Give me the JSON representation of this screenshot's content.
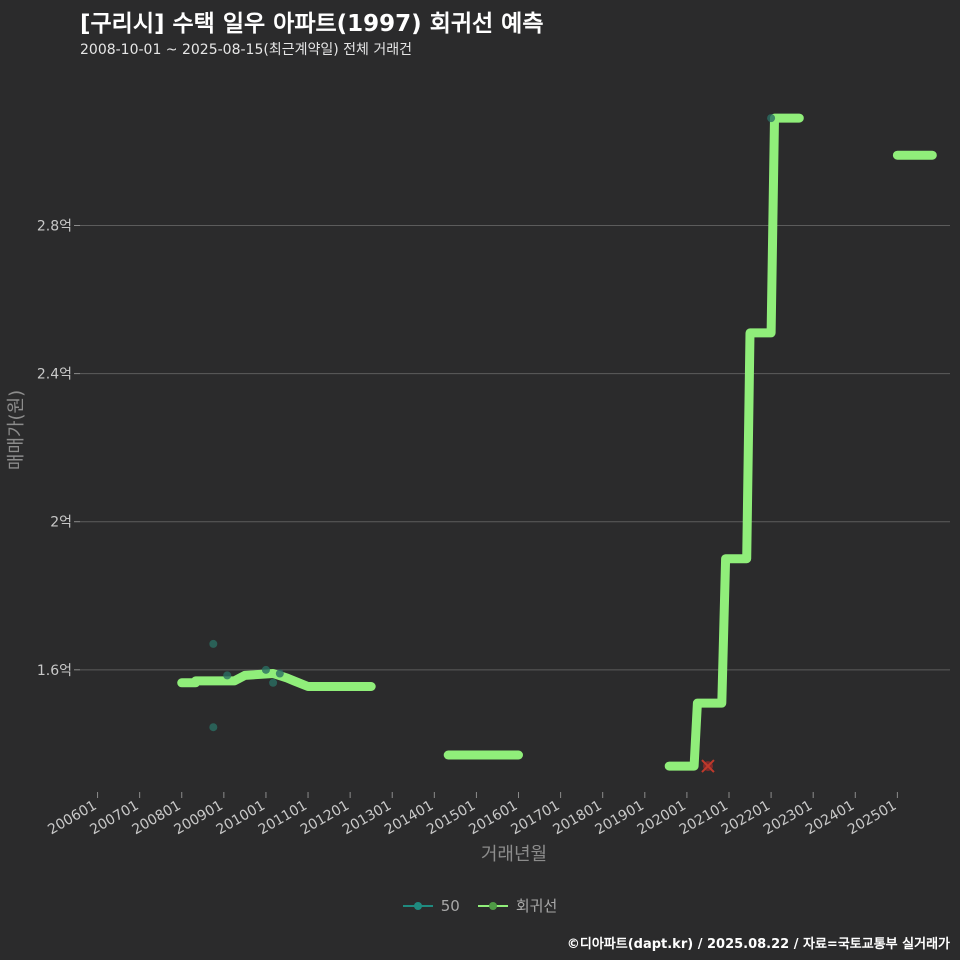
{
  "header": {
    "title": "[구리시] 수택 일우 아파트(1997) 회귀선 예측",
    "subtitle": "2008-10-01 ~ 2025-08-15(최근계약일) 전체 거래건"
  },
  "footer": {
    "credit": "©디아파트(dapt.kr) / 2025.08.22 / 자료=국토교통부 실거래가"
  },
  "legend": {
    "items": [
      {
        "label": "50",
        "color": "#1f8a7f"
      },
      {
        "label": "회귀선",
        "color": "#90ee7a"
      }
    ]
  },
  "colors": {
    "background": "#2b2b2c",
    "grid": "#5c5c5c",
    "regression": "#90ee7a",
    "scatter": "#2a6e63",
    "marker": "#8b2a2a"
  },
  "chart_data": {
    "type": "line",
    "xlabel": "거래년월",
    "ylabel": "매매가(원)",
    "x_range": [
      2005.583,
      2026.25
    ],
    "y_range": [
      1.27,
      3.22
    ],
    "x_ticks": [
      "200601",
      "200701",
      "200801",
      "200901",
      "201001",
      "201101",
      "201201",
      "201301",
      "201401",
      "201501",
      "201601",
      "201701",
      "201801",
      "201901",
      "202001",
      "202101",
      "202201",
      "202301",
      "202401",
      "202501"
    ],
    "y_ticks": [
      {
        "value": 1.6,
        "label": "1.6억"
      },
      {
        "value": 2.0,
        "label": "2억"
      },
      {
        "value": 2.4,
        "label": "2.4억"
      },
      {
        "value": 2.8,
        "label": "2.8억"
      }
    ],
    "series": [
      {
        "name": "회귀선",
        "segments": [
          [
            [
              2008.0,
              1.565
            ],
            [
              2008.33,
              1.565
            ],
            [
              2008.33,
              1.57
            ],
            [
              2009.25,
              1.57
            ],
            [
              2009.5,
              1.585
            ],
            [
              2010.17,
              1.59
            ],
            [
              2010.5,
              1.578
            ],
            [
              2010.67,
              1.57
            ],
            [
              2011.0,
              1.555
            ],
            [
              2012.5,
              1.555
            ]
          ],
          [
            [
              2014.33,
              1.37
            ],
            [
              2016.0,
              1.37
            ]
          ],
          [
            [
              2019.58,
              1.34
            ],
            [
              2020.17,
              1.34
            ],
            [
              2020.25,
              1.51
            ],
            [
              2020.83,
              1.51
            ],
            [
              2020.92,
              1.9
            ],
            [
              2021.42,
              1.9
            ],
            [
              2021.5,
              2.51
            ],
            [
              2022.0,
              2.51
            ],
            [
              2022.08,
              3.09
            ],
            [
              2022.67,
              3.09
            ]
          ],
          [
            [
              2025.0,
              2.99
            ],
            [
              2025.83,
              2.99
            ]
          ]
        ]
      },
      {
        "name": "50",
        "points": [
          [
            2008.75,
            1.67
          ],
          [
            2008.75,
            1.445
          ],
          [
            2009.08,
            1.585
          ],
          [
            2010.0,
            1.6
          ],
          [
            2010.17,
            1.565
          ],
          [
            2010.33,
            1.59
          ],
          [
            2022.0,
            3.09
          ]
        ]
      }
    ],
    "marker": {
      "x": 2020.5,
      "y": 1.34,
      "symbol": "x"
    }
  }
}
